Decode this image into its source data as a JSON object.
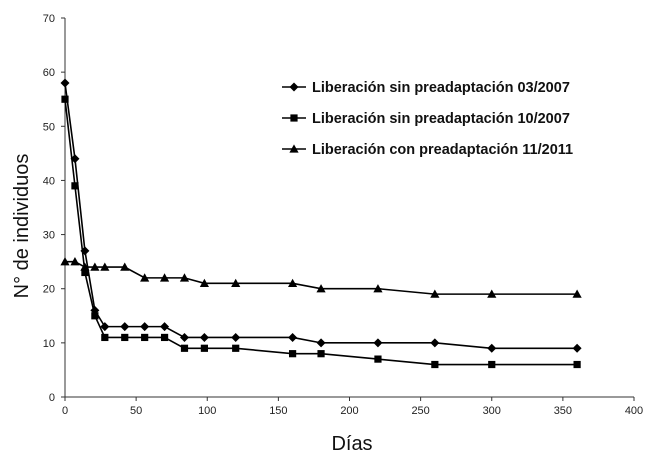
{
  "chart_data": {
    "type": "line",
    "xlabel": "Días",
    "ylabel": "N° de individuos",
    "xlim": [
      0,
      400
    ],
    "ylim": [
      0,
      70
    ],
    "xticks": [
      0,
      50,
      100,
      150,
      200,
      250,
      300,
      350,
      400
    ],
    "yticks": [
      0,
      10,
      20,
      30,
      40,
      50,
      60,
      70
    ],
    "grid": false,
    "legend_position": "top-right",
    "series": [
      {
        "name": "Liberación sin preadaptación 03/2007",
        "marker": "diamond",
        "x": [
          0,
          7,
          14,
          21,
          28,
          42,
          56,
          70,
          84,
          98,
          120,
          160,
          180,
          220,
          260,
          300,
          360
        ],
        "y": [
          58,
          44,
          27,
          16,
          13,
          13,
          13,
          13,
          11,
          11,
          11,
          11,
          10,
          10,
          10,
          9,
          9
        ]
      },
      {
        "name": "Liberación sin preadaptación 10/2007",
        "marker": "square",
        "x": [
          0,
          7,
          14,
          21,
          28,
          42,
          56,
          70,
          84,
          98,
          120,
          160,
          180,
          220,
          260,
          300,
          360
        ],
        "y": [
          55,
          39,
          23,
          15,
          11,
          11,
          11,
          11,
          9,
          9,
          9,
          8,
          8,
          7,
          6,
          6,
          6
        ]
      },
      {
        "name": "Liberación con preadaptación 11/2011",
        "marker": "triangle",
        "x": [
          0,
          7,
          14,
          21,
          28,
          42,
          56,
          70,
          84,
          98,
          120,
          160,
          180,
          220,
          260,
          300,
          360
        ],
        "y": [
          25,
          25,
          24,
          24,
          24,
          24,
          22,
          22,
          22,
          21,
          21,
          21,
          20,
          20,
          19,
          19,
          19
        ]
      }
    ]
  }
}
